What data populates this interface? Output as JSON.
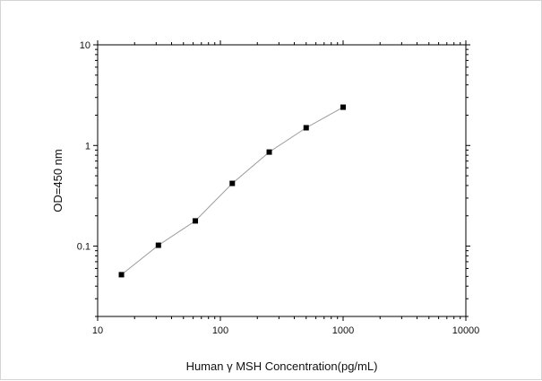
{
  "chart_data": {
    "type": "line",
    "title": "",
    "xlabel": "Human γ MSH Concentration(pg/mL)",
    "ylabel": "OD=450 nm",
    "x_scale": "log",
    "y_scale": "log",
    "xlim": [
      10,
      10000
    ],
    "ylim": [
      0.02,
      10
    ],
    "x_ticks": [
      10,
      100,
      1000,
      10000
    ],
    "x_tick_labels": [
      "10",
      "100",
      "1000",
      "10000"
    ],
    "y_ticks": [
      0.1,
      1,
      10
    ],
    "y_tick_labels": [
      "0.1",
      "1",
      "10"
    ],
    "grid": false,
    "series": [
      {
        "x": [
          15.625,
          31.25,
          62.5,
          125,
          250,
          500,
          1000
        ],
        "y": [
          0.052,
          0.102,
          0.178,
          0.42,
          0.86,
          1.5,
          2.4
        ]
      }
    ],
    "colors": {
      "line": "#999999",
      "marker": "#000000",
      "axis": "#000000"
    }
  }
}
